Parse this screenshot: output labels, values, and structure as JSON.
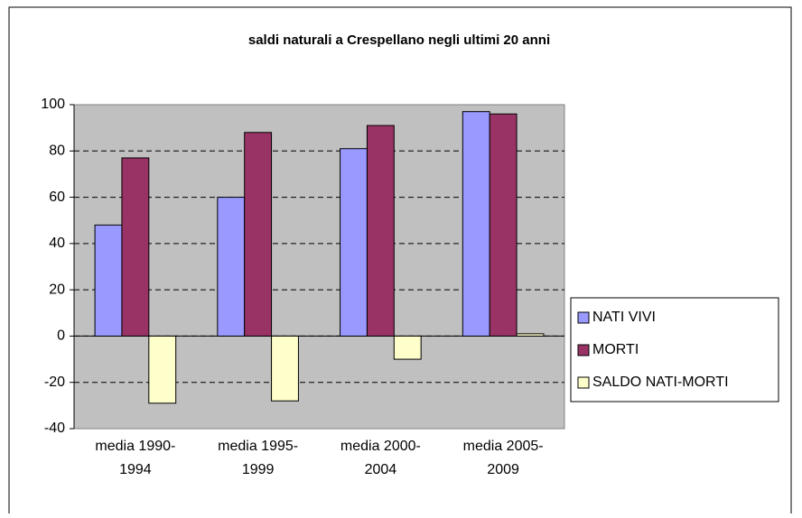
{
  "chart_data": {
    "type": "bar",
    "title": "saldi naturali a Crespellano negli ultimi 20 anni",
    "categories": [
      "media 1990-1994",
      "media 1995-1999",
      "media 2000-2004",
      "media 2005-2009"
    ],
    "series": [
      {
        "name": "NATI VIVI",
        "color": "#9999ff",
        "values": [
          48,
          60,
          81,
          97
        ]
      },
      {
        "name": "MORTI",
        "color": "#993366",
        "values": [
          77,
          88,
          91,
          96
        ]
      },
      {
        "name": "SALDO NATI-MORTI",
        "color": "#ffffcc",
        "values": [
          -29,
          -28,
          -10,
          1
        ]
      }
    ],
    "ylim": [
      -40,
      100
    ],
    "yticks": [
      -40,
      -20,
      0,
      20,
      40,
      60,
      80,
      100
    ],
    "grid": true,
    "legend": "right"
  }
}
